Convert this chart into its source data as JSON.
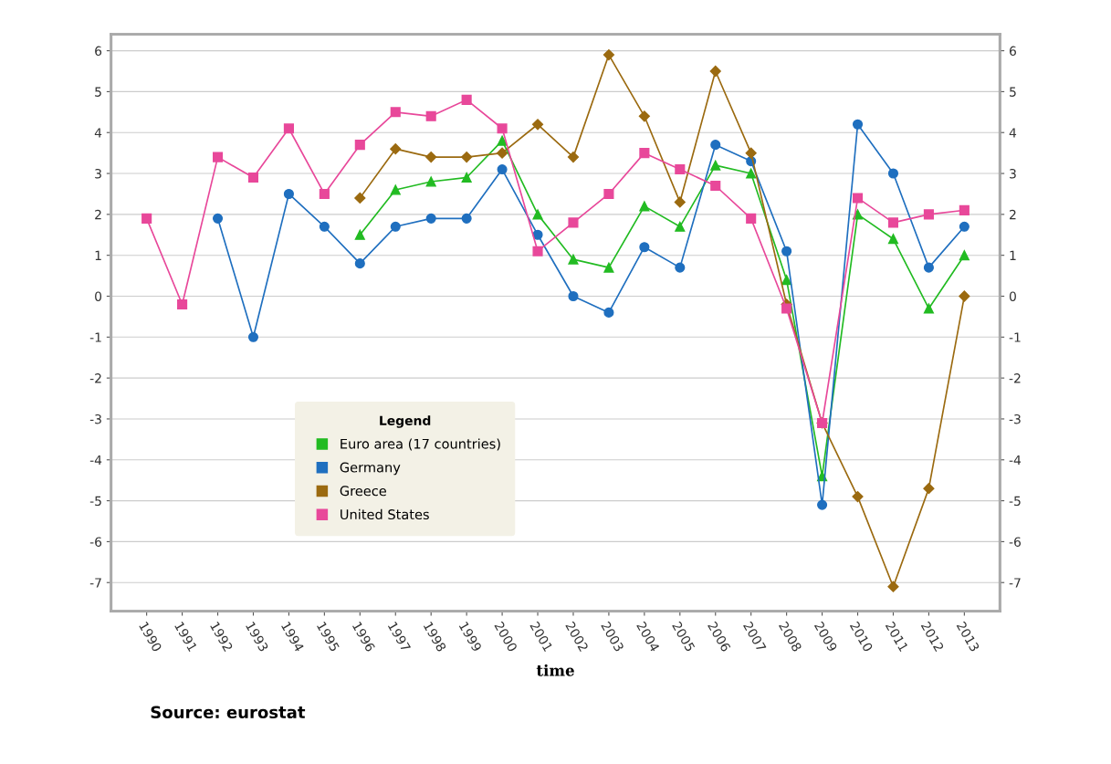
{
  "chart_data": {
    "type": "line",
    "xlabel": "time",
    "legend_title": "Legend",
    "legend": "lower left",
    "grid": "y",
    "line_style": "solid",
    "categories": [
      "1990",
      "1991",
      "1992",
      "1993",
      "1994",
      "1995",
      "1996",
      "1997",
      "1998",
      "1999",
      "2000",
      "2001",
      "2002",
      "2003",
      "2004",
      "2005",
      "2006",
      "2007",
      "2008",
      "2009",
      "2010",
      "2011",
      "2012",
      "2013"
    ],
    "ylim": [
      -7.7,
      6.4
    ],
    "yticks": [
      -7,
      -6,
      -5,
      -4,
      -3,
      -2,
      -1,
      0,
      1,
      2,
      3,
      4,
      5,
      6
    ],
    "y2lim": [
      -7.7,
      6.4
    ],
    "y2ticks": [
      -7,
      -6,
      -5,
      -4,
      -3,
      -2,
      -1,
      0,
      1,
      2,
      3,
      4,
      5,
      6
    ],
    "series": [
      {
        "name": "Euro area (17 countries)",
        "color": "#22bb22",
        "marker": "triangle",
        "values": [
          null,
          null,
          null,
          null,
          null,
          null,
          1.5,
          2.6,
          2.8,
          2.9,
          3.8,
          2.0,
          0.9,
          0.7,
          2.2,
          1.7,
          3.2,
          3.0,
          0.4,
          -4.4,
          2.0,
          1.4,
          -0.3,
          1.0
        ]
      },
      {
        "name": "Germany",
        "color": "#1f6fbf",
        "marker": "circle",
        "values": [
          null,
          null,
          1.9,
          -1.0,
          2.5,
          1.7,
          0.8,
          1.7,
          1.9,
          1.9,
          3.1,
          1.5,
          0.0,
          -0.4,
          1.2,
          0.7,
          3.7,
          3.3,
          1.1,
          -5.1,
          4.2,
          3.0,
          0.7,
          1.7
        ]
      },
      {
        "name": "Greece",
        "color": "#9b6a10",
        "marker": "diamond",
        "values": [
          null,
          null,
          null,
          null,
          null,
          null,
          2.4,
          3.6,
          3.4,
          3.4,
          3.5,
          4.2,
          3.4,
          5.9,
          4.4,
          2.3,
          5.5,
          3.5,
          -0.2,
          -3.1,
          -4.9,
          -7.1,
          -4.7,
          0.0
        ]
      },
      {
        "name": "United States",
        "color": "#e8489a",
        "marker": "square",
        "values": [
          1.9,
          -0.2,
          3.4,
          2.9,
          4.1,
          2.5,
          3.7,
          4.5,
          4.4,
          4.8,
          4.1,
          1.1,
          1.8,
          2.5,
          3.5,
          3.1,
          2.7,
          1.9,
          -0.3,
          -3.1,
          2.4,
          1.8,
          2.0,
          2.1
        ]
      }
    ],
    "annotations": [
      "Source: eurostat"
    ]
  }
}
